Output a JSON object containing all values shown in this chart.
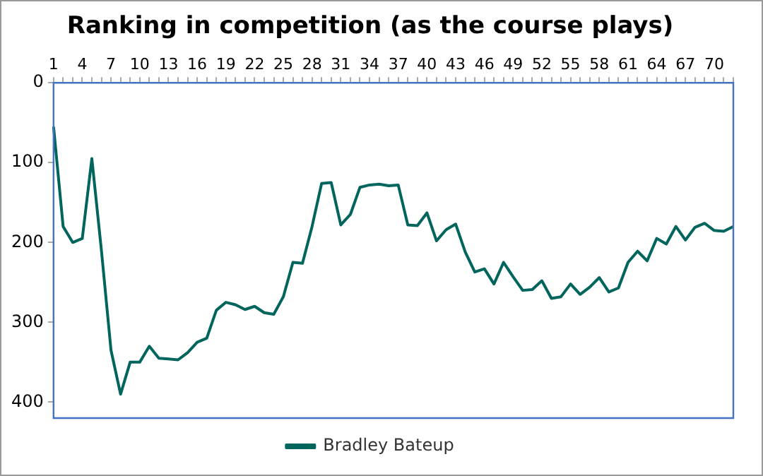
{
  "chart_data": {
    "type": "line",
    "title": "Ranking in competition (as the course plays)",
    "categories": [
      "1",
      null,
      null,
      "4",
      null,
      null,
      "7",
      null,
      null,
      "10",
      null,
      null,
      "13",
      null,
      null,
      "16",
      null,
      null,
      "19",
      null,
      null,
      "22",
      null,
      null,
      "25",
      null,
      null,
      "28",
      null,
      null,
      "31",
      null,
      null,
      "34",
      null,
      null,
      "37",
      null,
      null,
      "40",
      null,
      null,
      "43",
      null,
      null,
      "46",
      null,
      null,
      "49",
      null,
      null,
      "52",
      null,
      null,
      "55",
      null,
      null,
      "58",
      null,
      null,
      "61",
      null,
      null,
      "64",
      null,
      null,
      "67",
      null,
      null,
      "70",
      null,
      null
    ],
    "series": [
      {
        "name": "Bradley Bateup",
        "color": "#00655c",
        "values": [
          55,
          180,
          200,
          195,
          95,
          210,
          335,
          390,
          350,
          350,
          330,
          345,
          346,
          347,
          338,
          325,
          320,
          285,
          275,
          278,
          284,
          280,
          288,
          290,
          268,
          225,
          226,
          180,
          126,
          125,
          178,
          165,
          131,
          128,
          127,
          129,
          128,
          178,
          179,
          163,
          198,
          184,
          177,
          212,
          237,
          233,
          252,
          225,
          243,
          260,
          259,
          248,
          270,
          268,
          252,
          265,
          256,
          244,
          262,
          257,
          225,
          211,
          223,
          195,
          202,
          180,
          197,
          181,
          176,
          185,
          186,
          180
        ]
      }
    ],
    "ylim": [
      420,
      0
    ],
    "yticks": [
      0,
      100,
      200,
      300,
      400
    ],
    "grid": false,
    "legend": "bottom",
    "marker": "none",
    "line_style": "solid"
  }
}
